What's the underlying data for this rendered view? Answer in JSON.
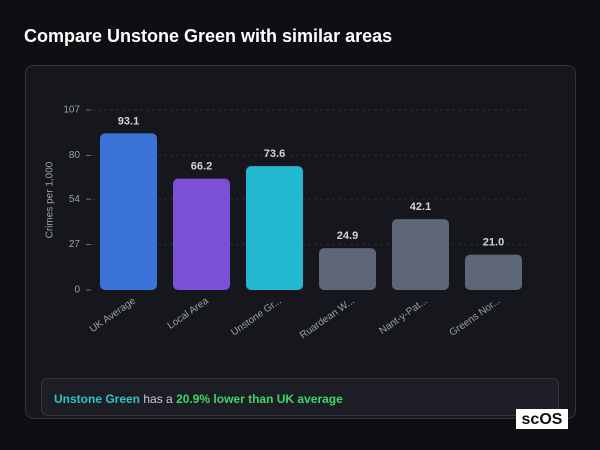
{
  "header": {
    "title": "Compare Unstone Green with similar areas"
  },
  "chart_data": {
    "type": "bar",
    "y_label": "Crimes per 1,000",
    "categories": [
      "UK Average",
      "Local Area",
      "Unstone Gr...",
      "Ruardean W...",
      "Nant-y-Pat...",
      "Greens Nor..."
    ],
    "values": [
      93.1,
      66.2,
      73.6,
      24.9,
      42.1,
      21.0
    ],
    "value_labels": [
      "93.1",
      "66.2",
      "73.6",
      "24.9",
      "42.1",
      "21.0"
    ],
    "colors": [
      "#3b74d9",
      "#7b4fd6",
      "#22b8d0",
      "#5d6778",
      "#5d6778",
      "#5d6778"
    ],
    "ylim": [
      0,
      107
    ],
    "yticks": [
      0,
      27,
      54,
      80,
      107
    ],
    "grid": true
  },
  "summary": {
    "area": "Unstone Green",
    "text": "has a",
    "highlight": "20.9% lower than UK average"
  },
  "logo": "scOS"
}
